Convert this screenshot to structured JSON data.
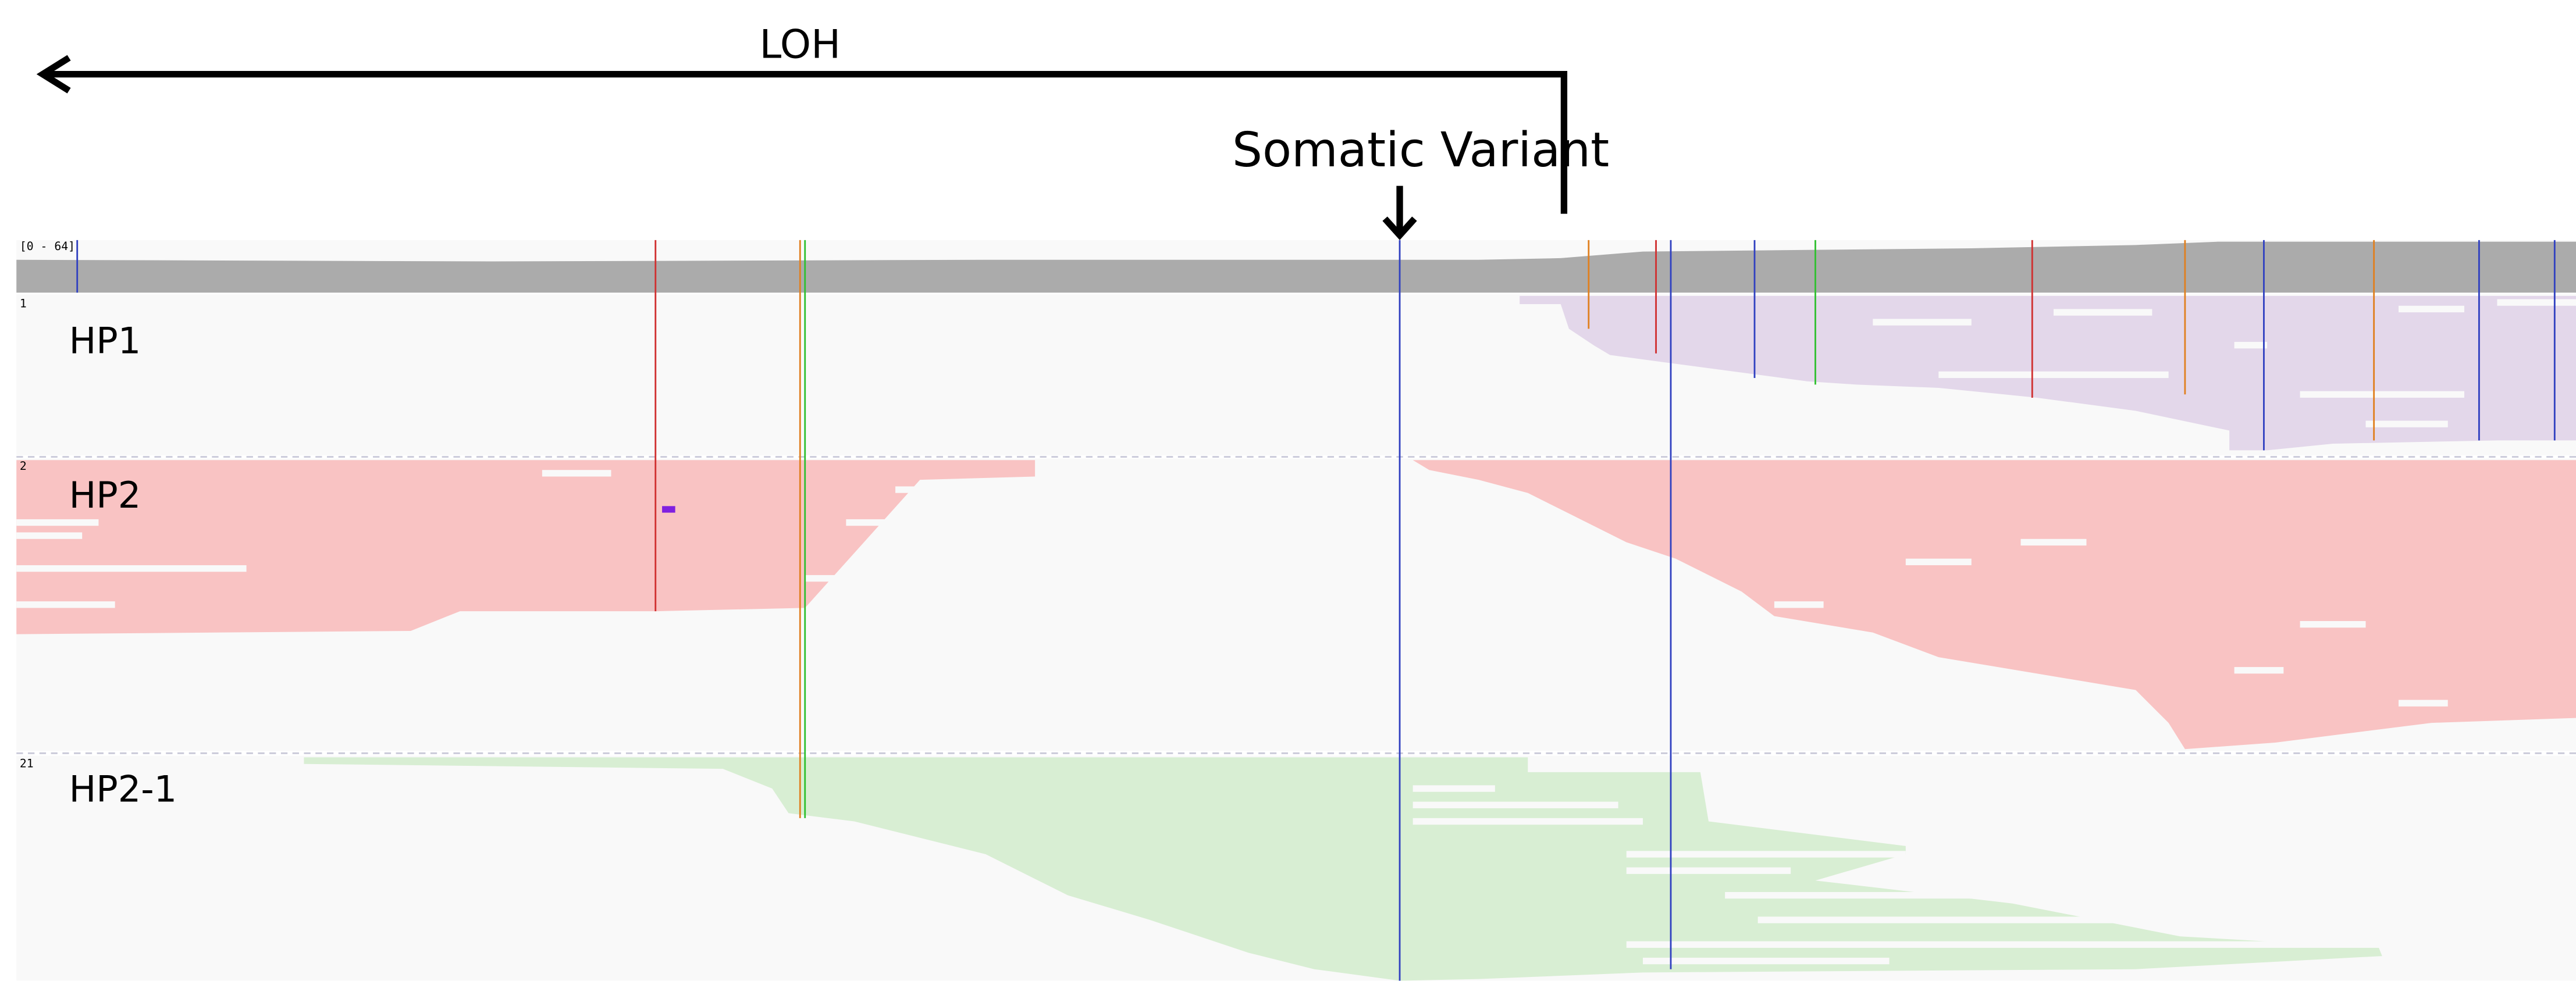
{
  "annotations": {
    "loh": "LOH",
    "somatic_variant": "Somatic Variant"
  },
  "coverage": {
    "range": "[0 - 64]"
  },
  "tracks": [
    {
      "number": "1",
      "label": "HP1"
    },
    {
      "number": "2",
      "label": "HP2"
    },
    {
      "number": "21",
      "label": "HP2-1"
    }
  ]
}
